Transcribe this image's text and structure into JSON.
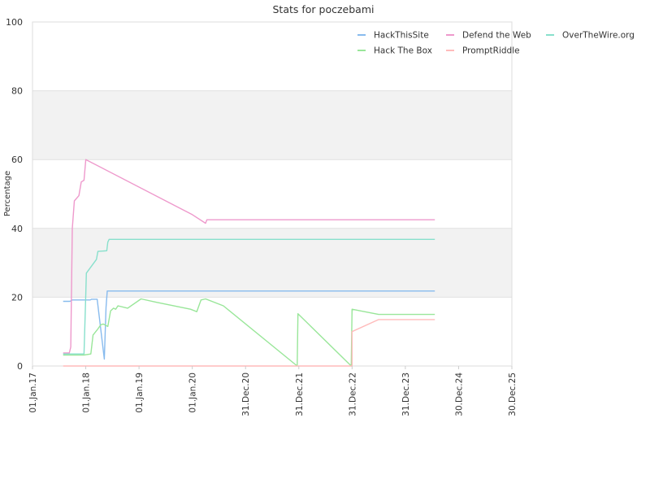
{
  "chart_data": {
    "type": "line",
    "title": "Stats for poczebami",
    "xlabel": "",
    "ylabel": "Percentage",
    "ylim": [
      0,
      100
    ],
    "yticks": [
      "0",
      "20",
      "40",
      "60",
      "80",
      "100"
    ],
    "xlim": [
      "2017-01-01",
      "2025-12-30"
    ],
    "xticks": [
      {
        "date": "2017-01-01",
        "label": "01.Jan.17"
      },
      {
        "date": "2018-01-01",
        "label": "01.Jan.18"
      },
      {
        "date": "2019-01-01",
        "label": "01.Jan.19"
      },
      {
        "date": "2020-01-01",
        "label": "01.Jan.20"
      },
      {
        "date": "2020-12-31",
        "label": "31.Dec.20"
      },
      {
        "date": "2021-12-31",
        "label": "31.Dec.21"
      },
      {
        "date": "2022-12-31",
        "label": "31.Dec.22"
      },
      {
        "date": "2023-12-31",
        "label": "31.Dec.23"
      },
      {
        "date": "2024-12-30",
        "label": "30.Dec.24"
      },
      {
        "date": "2025-12-30",
        "label": "30.Dec.25"
      }
    ],
    "grid": true,
    "legend_position": "top-right",
    "series": [
      {
        "name": "HackThisSite",
        "color": "#88bbee",
        "points": [
          [
            "2017-07-30",
            18.8
          ],
          [
            "2017-09-15",
            18.8
          ],
          [
            "2017-10-01",
            19.2
          ],
          [
            "2018-02-01",
            19.2
          ],
          [
            "2018-02-10",
            19.4
          ],
          [
            "2018-03-20",
            19.4
          ],
          [
            "2018-05-08",
            2.0
          ],
          [
            "2018-05-20",
            17.0
          ],
          [
            "2018-05-28",
            21.8
          ],
          [
            "2024-07-20",
            21.8
          ]
        ]
      },
      {
        "name": "Hack The Box",
        "color": "#99e699",
        "points": [
          [
            "2017-07-30",
            3.2
          ],
          [
            "2017-12-20",
            3.2
          ],
          [
            "2018-02-05",
            3.5
          ],
          [
            "2018-02-20",
            9.0
          ],
          [
            "2018-03-20",
            10.5
          ],
          [
            "2018-04-15",
            12.0
          ],
          [
            "2018-05-01",
            12.2
          ],
          [
            "2018-06-01",
            11.5
          ],
          [
            "2018-06-20",
            16.0
          ],
          [
            "2018-07-10",
            16.8
          ],
          [
            "2018-07-25",
            16.5
          ],
          [
            "2018-08-10",
            17.5
          ],
          [
            "2018-10-15",
            16.8
          ],
          [
            "2019-01-15",
            19.5
          ],
          [
            "2019-05-01",
            18.5
          ],
          [
            "2019-12-20",
            16.5
          ],
          [
            "2020-02-01",
            15.8
          ],
          [
            "2020-03-01",
            19.2
          ],
          [
            "2020-04-01",
            19.5
          ],
          [
            "2020-08-01",
            17.5
          ],
          [
            "2021-12-20",
            0.0
          ],
          [
            "2021-12-25",
            15.2
          ],
          [
            "2022-12-25",
            0.0
          ],
          [
            "2022-12-31",
            16.5
          ],
          [
            "2023-07-01",
            15.0
          ],
          [
            "2024-07-20",
            15.0
          ]
        ]
      },
      {
        "name": "Defend the Web",
        "color": "#ee99cc",
        "points": [
          [
            "2017-07-30",
            3.8
          ],
          [
            "2017-09-10",
            3.8
          ],
          [
            "2017-09-20",
            5.5
          ],
          [
            "2017-10-01",
            40.0
          ],
          [
            "2017-10-15",
            48.0
          ],
          [
            "2017-11-15",
            49.5
          ],
          [
            "2017-12-01",
            53.5
          ],
          [
            "2017-12-20",
            54.0
          ],
          [
            "2018-01-01",
            60.0
          ],
          [
            "2020-01-01",
            44.0
          ],
          [
            "2020-04-01",
            41.5
          ],
          [
            "2020-04-10",
            42.5
          ],
          [
            "2024-07-20",
            42.5
          ]
        ]
      },
      {
        "name": "PromptRiddle",
        "color": "#ffbbbb",
        "points": [
          [
            "2017-07-30",
            0.0
          ],
          [
            "2022-12-31",
            0.0
          ],
          [
            "2022-12-31",
            10.0
          ],
          [
            "2023-07-01",
            13.5
          ],
          [
            "2024-07-20",
            13.5
          ]
        ]
      },
      {
        "name": "OverTheWire.org",
        "color": "#88e0cc",
        "points": [
          [
            "2017-07-30",
            3.5
          ],
          [
            "2017-12-20",
            3.5
          ],
          [
            "2018-01-01",
            21.0
          ],
          [
            "2018-01-05",
            27.0
          ],
          [
            "2018-03-15",
            31.0
          ],
          [
            "2018-03-25",
            33.3
          ],
          [
            "2018-05-25",
            33.5
          ],
          [
            "2018-06-01",
            36.0
          ],
          [
            "2018-06-10",
            36.8
          ],
          [
            "2024-07-20",
            36.8
          ]
        ]
      }
    ]
  }
}
